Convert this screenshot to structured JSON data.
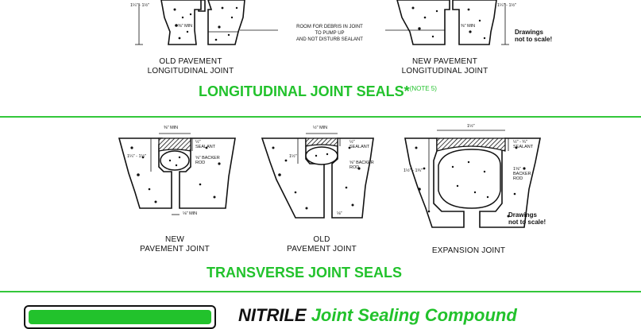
{
  "longitudinal": {
    "old_label_line1": "OLD PAVEMENT",
    "old_label_line2": "LONGITUDINAL JOINT",
    "new_label_line1": "NEW PAVEMENT",
    "new_label_line2": "LONGITUDINAL JOINT",
    "debris_note_line1": "ROOM FOR DEBRIS IN JOINT",
    "debris_note_line2": "TO PUMP UP",
    "debris_note_line3": "AND NOT DISTURB SEALANT",
    "dim_old_depth": "1¼\" - 1½\"",
    "dim_old_min": "⅜\" MIN",
    "dim_new_depth": "1¼\" - 1½\"",
    "dim_new_min": "⅜\" MIN",
    "not_to_scale_line1": "Drawings",
    "not_to_scale_line2": "not to scale!",
    "heading": "LONGITUDINAL JOINT SEALS*",
    "heading_note": "(NOTE 5)"
  },
  "transverse": {
    "new_label_line1": "NEW",
    "new_label_line2": "PAVEMENT JOINT",
    "old_label_line1": "OLD",
    "old_label_line2": "PAVEMENT JOINT",
    "expansion_label": "EXPANSION JOINT",
    "new_top": "⅜\" MIN",
    "new_sealant": "½\"",
    "new_sealant2": "SEALANT",
    "new_backer1": "⅝\" BACKER",
    "new_backer2": "ROD",
    "new_depth": "1¼\" - 1½\"",
    "new_bottom": "⅛\" MIN",
    "old_top": "½\" MIN",
    "old_sealant": "½\"",
    "old_sealant2": "SEALANT",
    "old_backer1": "⅝\" BACKER",
    "old_backer2": "ROD",
    "old_depth": "1½\"",
    "old_bottom": "⅛\"",
    "exp_top": "1½\"",
    "exp_sealant": "½\" - ¾\"",
    "exp_sealant2": "SEALANT",
    "exp_backer1": "1⅝\"",
    "exp_backer2": "BACKER",
    "exp_backer3": "ROD",
    "exp_depth": "1½\" - 1¾\"",
    "not_to_scale_line1": "Drawings",
    "not_to_scale_line2": "not to scale!",
    "heading": "TRANSVERSE JOINT SEALS"
  },
  "footer": {
    "title_black": "NITRILE",
    "title_green": "Joint Sealing Compound"
  },
  "colors": {
    "accent": "#22c22c"
  }
}
